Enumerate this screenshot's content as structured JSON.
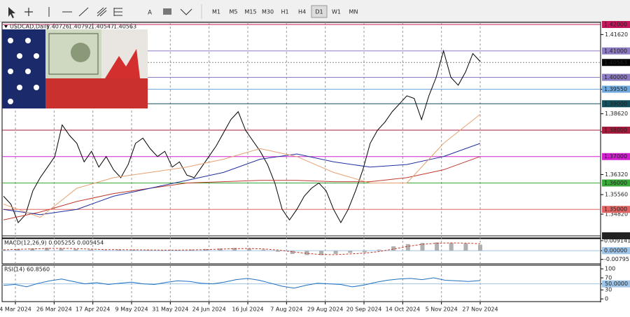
{
  "toolbar": {
    "timeframes": [
      "M1",
      "M5",
      "M15",
      "M30",
      "H1",
      "H4",
      "D1",
      "W1",
      "MN"
    ],
    "active": "D1"
  },
  "chart_data": {
    "type": "line",
    "symbol_label": "USDCAD,Daily",
    "quote": [
      "1.40726",
      "1.40792",
      "1.40547",
      "1.40563"
    ],
    "date_labels": [
      "4 Mar 2024",
      "26 Mar 2024",
      "17 Apr 2024",
      "9 May 2024",
      "31 May 2024",
      "24 Jun 2024",
      "16 Jul 2024",
      "7 Aug 2024",
      "29 Aug 2024",
      "20 Sep 2024",
      "14 Oct 2024",
      "5 Nov 2024",
      "27 Nov 2024"
    ],
    "ylim": [
      1.3392,
      1.4208
    ],
    "yticks": [
      {
        "value": 1.4162,
        "label": "1.41620"
      },
      {
        "value": 1.3955,
        "label": "1.39550"
      },
      {
        "value": 1.3862,
        "label": "1.38620"
      },
      {
        "value": 1.3794,
        "label": "1.37940"
      },
      {
        "value": 1.3632,
        "label": "1.36320"
      },
      {
        "value": 1.3556,
        "label": "1.35560"
      },
      {
        "value": 1.3482,
        "label": "1.34820"
      }
    ],
    "levels": [
      {
        "value": 1.42,
        "label": "1.42000",
        "color": "#c2185b"
      },
      {
        "value": 1.41,
        "label": "1.41000",
        "color": "#8e7cc3"
      },
      {
        "value": 1.4,
        "label": "1.40000",
        "color": "#8e7cc3"
      },
      {
        "value": 1.3955,
        "label": "1.39550",
        "color": "#6fa8dc"
      },
      {
        "value": 1.39,
        "label": "1.39000",
        "color": "#134f5c"
      },
      {
        "value": 1.38,
        "label": "1.38000",
        "color": "#a61c3c"
      },
      {
        "value": 1.37,
        "label": "1.37000",
        "color": "#d020d0"
      },
      {
        "value": 1.36,
        "label": "1.36000",
        "color": "#38a838"
      },
      {
        "value": 1.35,
        "label": "1.35000",
        "color": "#e06666"
      },
      {
        "value": 1.34,
        "label": "1.34000",
        "color": "#222222"
      }
    ],
    "current": {
      "value": 1.40563,
      "label": "1.40563"
    },
    "series": [
      {
        "color": "#000000",
        "values": [
          1.355,
          1.352,
          1.345,
          1.348,
          1.357,
          1.362,
          1.366,
          1.37,
          1.382,
          1.378,
          1.375,
          1.368,
          1.372,
          1.366,
          1.37,
          1.365,
          1.362,
          1.367,
          1.375,
          1.377,
          1.373,
          1.37,
          1.372,
          1.366,
          1.368,
          1.363,
          1.362,
          1.366,
          1.37,
          1.374,
          1.379,
          1.384,
          1.387,
          1.38,
          1.376,
          1.372,
          1.367,
          1.36,
          1.35,
          1.346,
          1.35,
          1.355,
          1.358,
          1.36,
          1.357,
          1.35,
          1.345,
          1.35,
          1.357,
          1.365,
          1.375,
          1.38,
          1.383,
          1.387,
          1.39,
          1.393,
          1.392,
          1.384,
          1.393,
          1.4,
          1.41,
          1.4,
          1.397,
          1.402,
          1.409,
          1.406
        ]
      },
      {
        "color": "#c0392b",
        "values": [
          1.346,
          1.349,
          1.353,
          1.356,
          1.358,
          1.36,
          1.3605,
          1.361,
          1.361,
          1.3605,
          1.3605,
          1.362,
          1.365,
          1.37
        ]
      },
      {
        "color": "#1f2f9e",
        "values": [
          1.35,
          1.348,
          1.35,
          1.355,
          1.358,
          1.361,
          1.364,
          1.369,
          1.371,
          1.368,
          1.366,
          1.367,
          1.37,
          1.375
        ]
      },
      {
        "color": "#e6a070",
        "values": [
          1.352,
          1.347,
          1.358,
          1.362,
          1.364,
          1.366,
          1.369,
          1.373,
          1.37,
          1.364,
          1.36,
          1.36,
          1.375,
          1.386
        ]
      }
    ],
    "macd": {
      "title": "MACD(12,26,9) 0.005255 0.005454",
      "ylim": [
        -0.012,
        0.011
      ],
      "yticks": [
        0.009141,
        {
          "value": 0,
          "label": "0.00000"
        },
        -0.00795
      ],
      "histogram": [
        0.001,
        0.0015,
        0.002,
        0.0025,
        0.002,
        0.0015,
        0.001,
        0.0005,
        0.001,
        0.0008,
        0.0005,
        0.0003,
        0.0005,
        0.001,
        0.0015,
        0.002,
        0.0025,
        0.002,
        0.001,
        -0.001,
        -0.003,
        -0.004,
        -0.004,
        -0.003,
        -0.002,
        -0.0015,
        0.001,
        0.004,
        0.006,
        0.007,
        0.0075,
        0.007,
        0.0065,
        0.0055
      ],
      "signal": [
        0.0008,
        0.0012,
        0.0016,
        0.002,
        0.0021,
        0.0019,
        0.0015,
        0.001,
        0.0009,
        0.0008,
        0.0007,
        0.0005,
        0.0005,
        0.0007,
        0.001,
        0.0014,
        0.0018,
        0.002,
        0.0016,
        0.0006,
        -0.001,
        -0.0025,
        -0.0035,
        -0.0036,
        -0.003,
        -0.0022,
        -0.0008,
        0.0015,
        0.004,
        0.0058,
        0.0068,
        0.0071,
        0.0069,
        0.0063
      ]
    },
    "rsi": {
      "title": "RSI(14) 60.8560",
      "ylim": [
        -9,
        112
      ],
      "yticks": [
        100,
        70,
        {
          "value": 50,
          "label": "50.0000"
        },
        30,
        0
      ],
      "values": [
        45,
        48,
        40,
        52,
        60,
        66,
        58,
        50,
        54,
        48,
        52,
        56,
        50,
        48,
        55,
        60,
        58,
        52,
        50,
        56,
        64,
        68,
        62,
        52,
        42,
        36,
        45,
        52,
        50,
        48,
        40,
        46,
        55,
        62,
        66,
        68,
        64,
        70,
        62,
        60,
        58,
        61
      ]
    }
  }
}
